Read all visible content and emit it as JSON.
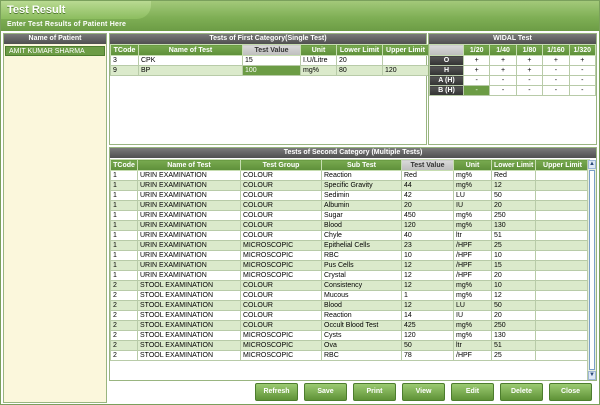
{
  "window": {
    "title": "Test Result",
    "subtitle": "Enter Test Results of Patient Here"
  },
  "patients": {
    "header": "Name of Patient",
    "items": [
      "AMIT KUMAR SHARMA"
    ]
  },
  "first_category": {
    "title": "Tests of First Category(Single Test)",
    "columns": [
      "TCode",
      "Name of Test",
      "Test Value",
      "Unit",
      "Lower Limit",
      "Upper Limit"
    ],
    "rows": [
      [
        "3",
        "CPK",
        "15",
        "I.U/Litre",
        "20",
        ""
      ],
      [
        "9",
        "BP",
        "100",
        "mg%",
        "80",
        "120"
      ]
    ]
  },
  "widal": {
    "title": "WIDAL Test",
    "columns": [
      "1/20",
      "1/40",
      "1/80",
      "1/160",
      "1/320"
    ],
    "rows": [
      {
        "label": "O",
        "values": [
          "+",
          "+",
          "+",
          "+",
          "+"
        ]
      },
      {
        "label": "H",
        "values": [
          "+",
          "+",
          "+",
          "-",
          "-"
        ]
      },
      {
        "label": "A (H)",
        "values": [
          "-",
          "-",
          "-",
          "-",
          "-"
        ]
      },
      {
        "label": "B (H)",
        "values": [
          "-",
          "-",
          "-",
          "-",
          "-"
        ]
      }
    ]
  },
  "second_category": {
    "title": "Tests of Second Category (Multiple Tests)",
    "columns": [
      "TCode",
      "Name of Test",
      "Test Group",
      "Sub Test",
      "Test Value",
      "Unit",
      "Lower Limit",
      "Upper Limit"
    ],
    "rows": [
      [
        "1",
        "URIN EXAMINATION",
        "COLOUR",
        "Reaction",
        "Red",
        "mg%",
        "Red",
        ""
      ],
      [
        "1",
        "URIN EXAMINATION",
        "COLOUR",
        "Specific Gravity",
        "44",
        "mg%",
        "12",
        ""
      ],
      [
        "1",
        "URIN EXAMINATION",
        "COLOUR",
        "Sedimin",
        "42",
        "LU",
        "50",
        ""
      ],
      [
        "1",
        "URIN EXAMINATION",
        "COLOUR",
        "Albumin",
        "20",
        "IU",
        "20",
        ""
      ],
      [
        "1",
        "URIN EXAMINATION",
        "COLOUR",
        "Sugar",
        "450",
        "mg%",
        "250",
        ""
      ],
      [
        "1",
        "URIN EXAMINATION",
        "COLOUR",
        "Blood",
        "120",
        "mg%",
        "130",
        ""
      ],
      [
        "1",
        "URIN EXAMINATION",
        "COLOUR",
        "Chyle",
        "40",
        "ltr",
        "51",
        ""
      ],
      [
        "1",
        "URIN EXAMINATION",
        "MICROSCOPIC",
        "Epithelial Cells",
        "23",
        "/HPF",
        "25",
        ""
      ],
      [
        "1",
        "URIN EXAMINATION",
        "MICROSCOPIC",
        "RBC",
        "10",
        "/HPF",
        "10",
        ""
      ],
      [
        "1",
        "URIN EXAMINATION",
        "MICROSCOPIC",
        "Pus Cells",
        "12",
        "/HPF",
        "15",
        ""
      ],
      [
        "1",
        "URIN EXAMINATION",
        "MICROSCOPIC",
        "Crystal",
        "12",
        "/HPF",
        "20",
        ""
      ],
      [
        "2",
        "STOOL EXAMINATION",
        "COLOUR",
        "Consistency",
        "12",
        "mg%",
        "10",
        ""
      ],
      [
        "2",
        "STOOL EXAMINATION",
        "COLOUR",
        "Mucous",
        "1",
        "mg%",
        "12",
        ""
      ],
      [
        "2",
        "STOOL EXAMINATION",
        "COLOUR",
        "Blood",
        "12",
        "LU",
        "50",
        ""
      ],
      [
        "2",
        "STOOL EXAMINATION",
        "COLOUR",
        "Reaction",
        "14",
        "IU",
        "20",
        ""
      ],
      [
        "2",
        "STOOL EXAMINATION",
        "COLOUR",
        "Occult Blood Test",
        "425",
        "mg%",
        "250",
        ""
      ],
      [
        "2",
        "STOOL EXAMINATION",
        "MICROSCOPIC",
        "Cysts",
        "120",
        "mg%",
        "130",
        ""
      ],
      [
        "2",
        "STOOL EXAMINATION",
        "MICROSCOPIC",
        "Ova",
        "50",
        "ltr",
        "51",
        ""
      ],
      [
        "2",
        "STOOL EXAMINATION",
        "MICROSCOPIC",
        "RBC",
        "78",
        "/HPF",
        "25",
        ""
      ]
    ]
  },
  "buttons": [
    "Refresh",
    "Save",
    "Print",
    "View",
    "Edit",
    "Delete",
    "Close"
  ],
  "colors": {
    "accent": "#6c9c45",
    "row_alt": "#dbeacb"
  }
}
